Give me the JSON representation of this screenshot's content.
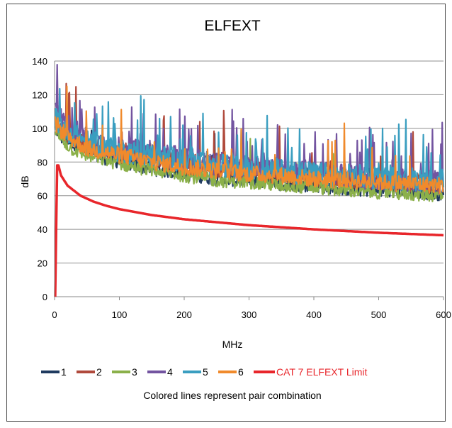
{
  "chart_data": {
    "type": "line",
    "title": "ELFEXT",
    "xlabel": "MHz",
    "ylabel": "dB",
    "xlim": [
      0,
      600
    ],
    "ylim": [
      0,
      140
    ],
    "x_ticks": [
      0,
      100,
      200,
      300,
      400,
      500,
      600
    ],
    "y_ticks": [
      0,
      20,
      40,
      60,
      80,
      100,
      120,
      140
    ],
    "grid": "horizontal",
    "legend_position": "bottom",
    "caption": "Colored lines represent pair combination",
    "series": [
      {
        "name": "1",
        "color": "#1f3a5f",
        "points": [
          [
            1,
            100
          ],
          [
            10,
            95
          ],
          [
            25,
            90
          ],
          [
            50,
            85
          ],
          [
            100,
            80
          ],
          [
            150,
            76
          ],
          [
            200,
            73
          ],
          [
            250,
            70
          ],
          [
            300,
            69
          ],
          [
            350,
            67
          ],
          [
            400,
            66
          ],
          [
            450,
            64
          ],
          [
            500,
            63
          ],
          [
            550,
            62
          ],
          [
            600,
            61
          ]
        ],
        "noise": 4,
        "spike_rate": 0.01
      },
      {
        "name": "2",
        "color": "#b04a3c",
        "points": [
          [
            1,
            104
          ],
          [
            10,
            100
          ],
          [
            25,
            96
          ],
          [
            50,
            90
          ],
          [
            100,
            86
          ],
          [
            150,
            83
          ],
          [
            200,
            80
          ],
          [
            250,
            77
          ],
          [
            300,
            75
          ],
          [
            350,
            74
          ],
          [
            400,
            71
          ],
          [
            450,
            70
          ],
          [
            500,
            69
          ],
          [
            550,
            68
          ],
          [
            600,
            67
          ]
        ],
        "noise": 6,
        "spike_rate": 0.05
      },
      {
        "name": "3",
        "color": "#8bb04a",
        "points": [
          [
            1,
            98
          ],
          [
            10,
            94
          ],
          [
            25,
            88
          ],
          [
            50,
            84
          ],
          [
            100,
            79
          ],
          [
            150,
            75
          ],
          [
            200,
            72
          ],
          [
            250,
            69
          ],
          [
            300,
            68
          ],
          [
            350,
            66
          ],
          [
            400,
            65
          ],
          [
            450,
            63
          ],
          [
            500,
            62
          ],
          [
            550,
            61
          ],
          [
            600,
            60
          ]
        ],
        "noise": 4,
        "spike_rate": 0.01
      },
      {
        "name": "4",
        "color": "#7354a0",
        "points": [
          [
            1,
            110
          ],
          [
            10,
            106
          ],
          [
            25,
            100
          ],
          [
            50,
            94
          ],
          [
            100,
            88
          ],
          [
            150,
            85
          ],
          [
            200,
            82
          ],
          [
            250,
            79
          ],
          [
            300,
            77
          ],
          [
            350,
            76
          ],
          [
            400,
            74
          ],
          [
            450,
            72
          ],
          [
            500,
            70
          ],
          [
            550,
            69
          ],
          [
            600,
            68
          ]
        ],
        "noise": 7,
        "spike_rate": 0.08
      },
      {
        "name": "5",
        "color": "#3a9ec0",
        "points": [
          [
            1,
            106
          ],
          [
            10,
            102
          ],
          [
            25,
            97
          ],
          [
            50,
            92
          ],
          [
            100,
            87
          ],
          [
            150,
            84
          ],
          [
            200,
            81
          ],
          [
            250,
            78
          ],
          [
            300,
            77
          ],
          [
            350,
            75
          ],
          [
            400,
            73
          ],
          [
            450,
            72
          ],
          [
            500,
            71
          ],
          [
            550,
            70
          ],
          [
            600,
            69
          ]
        ],
        "noise": 7,
        "spike_rate": 0.07
      },
      {
        "name": "6",
        "color": "#f08a2c",
        "points": [
          [
            1,
            103
          ],
          [
            10,
            99
          ],
          [
            25,
            94
          ],
          [
            50,
            88
          ],
          [
            100,
            84
          ],
          [
            150,
            80
          ],
          [
            200,
            77
          ],
          [
            250,
            75
          ],
          [
            300,
            73
          ],
          [
            350,
            72
          ],
          [
            400,
            70
          ],
          [
            450,
            69
          ],
          [
            500,
            68
          ],
          [
            550,
            67
          ],
          [
            600,
            66
          ]
        ],
        "noise": 5,
        "spike_rate": 0.03
      },
      {
        "name": "CAT 7 ELFEXT Limit",
        "color": "#e8262b",
        "limit": true,
        "points": [
          [
            1,
            0
          ],
          [
            4,
            78
          ],
          [
            6,
            78
          ],
          [
            10,
            72
          ],
          [
            20,
            66
          ],
          [
            40,
            60
          ],
          [
            60,
            56.5
          ],
          [
            80,
            54
          ],
          [
            100,
            52
          ],
          [
            150,
            48.5
          ],
          [
            200,
            46
          ],
          [
            300,
            42.5
          ],
          [
            400,
            40
          ],
          [
            500,
            38
          ],
          [
            600,
            36.5
          ]
        ]
      }
    ]
  }
}
